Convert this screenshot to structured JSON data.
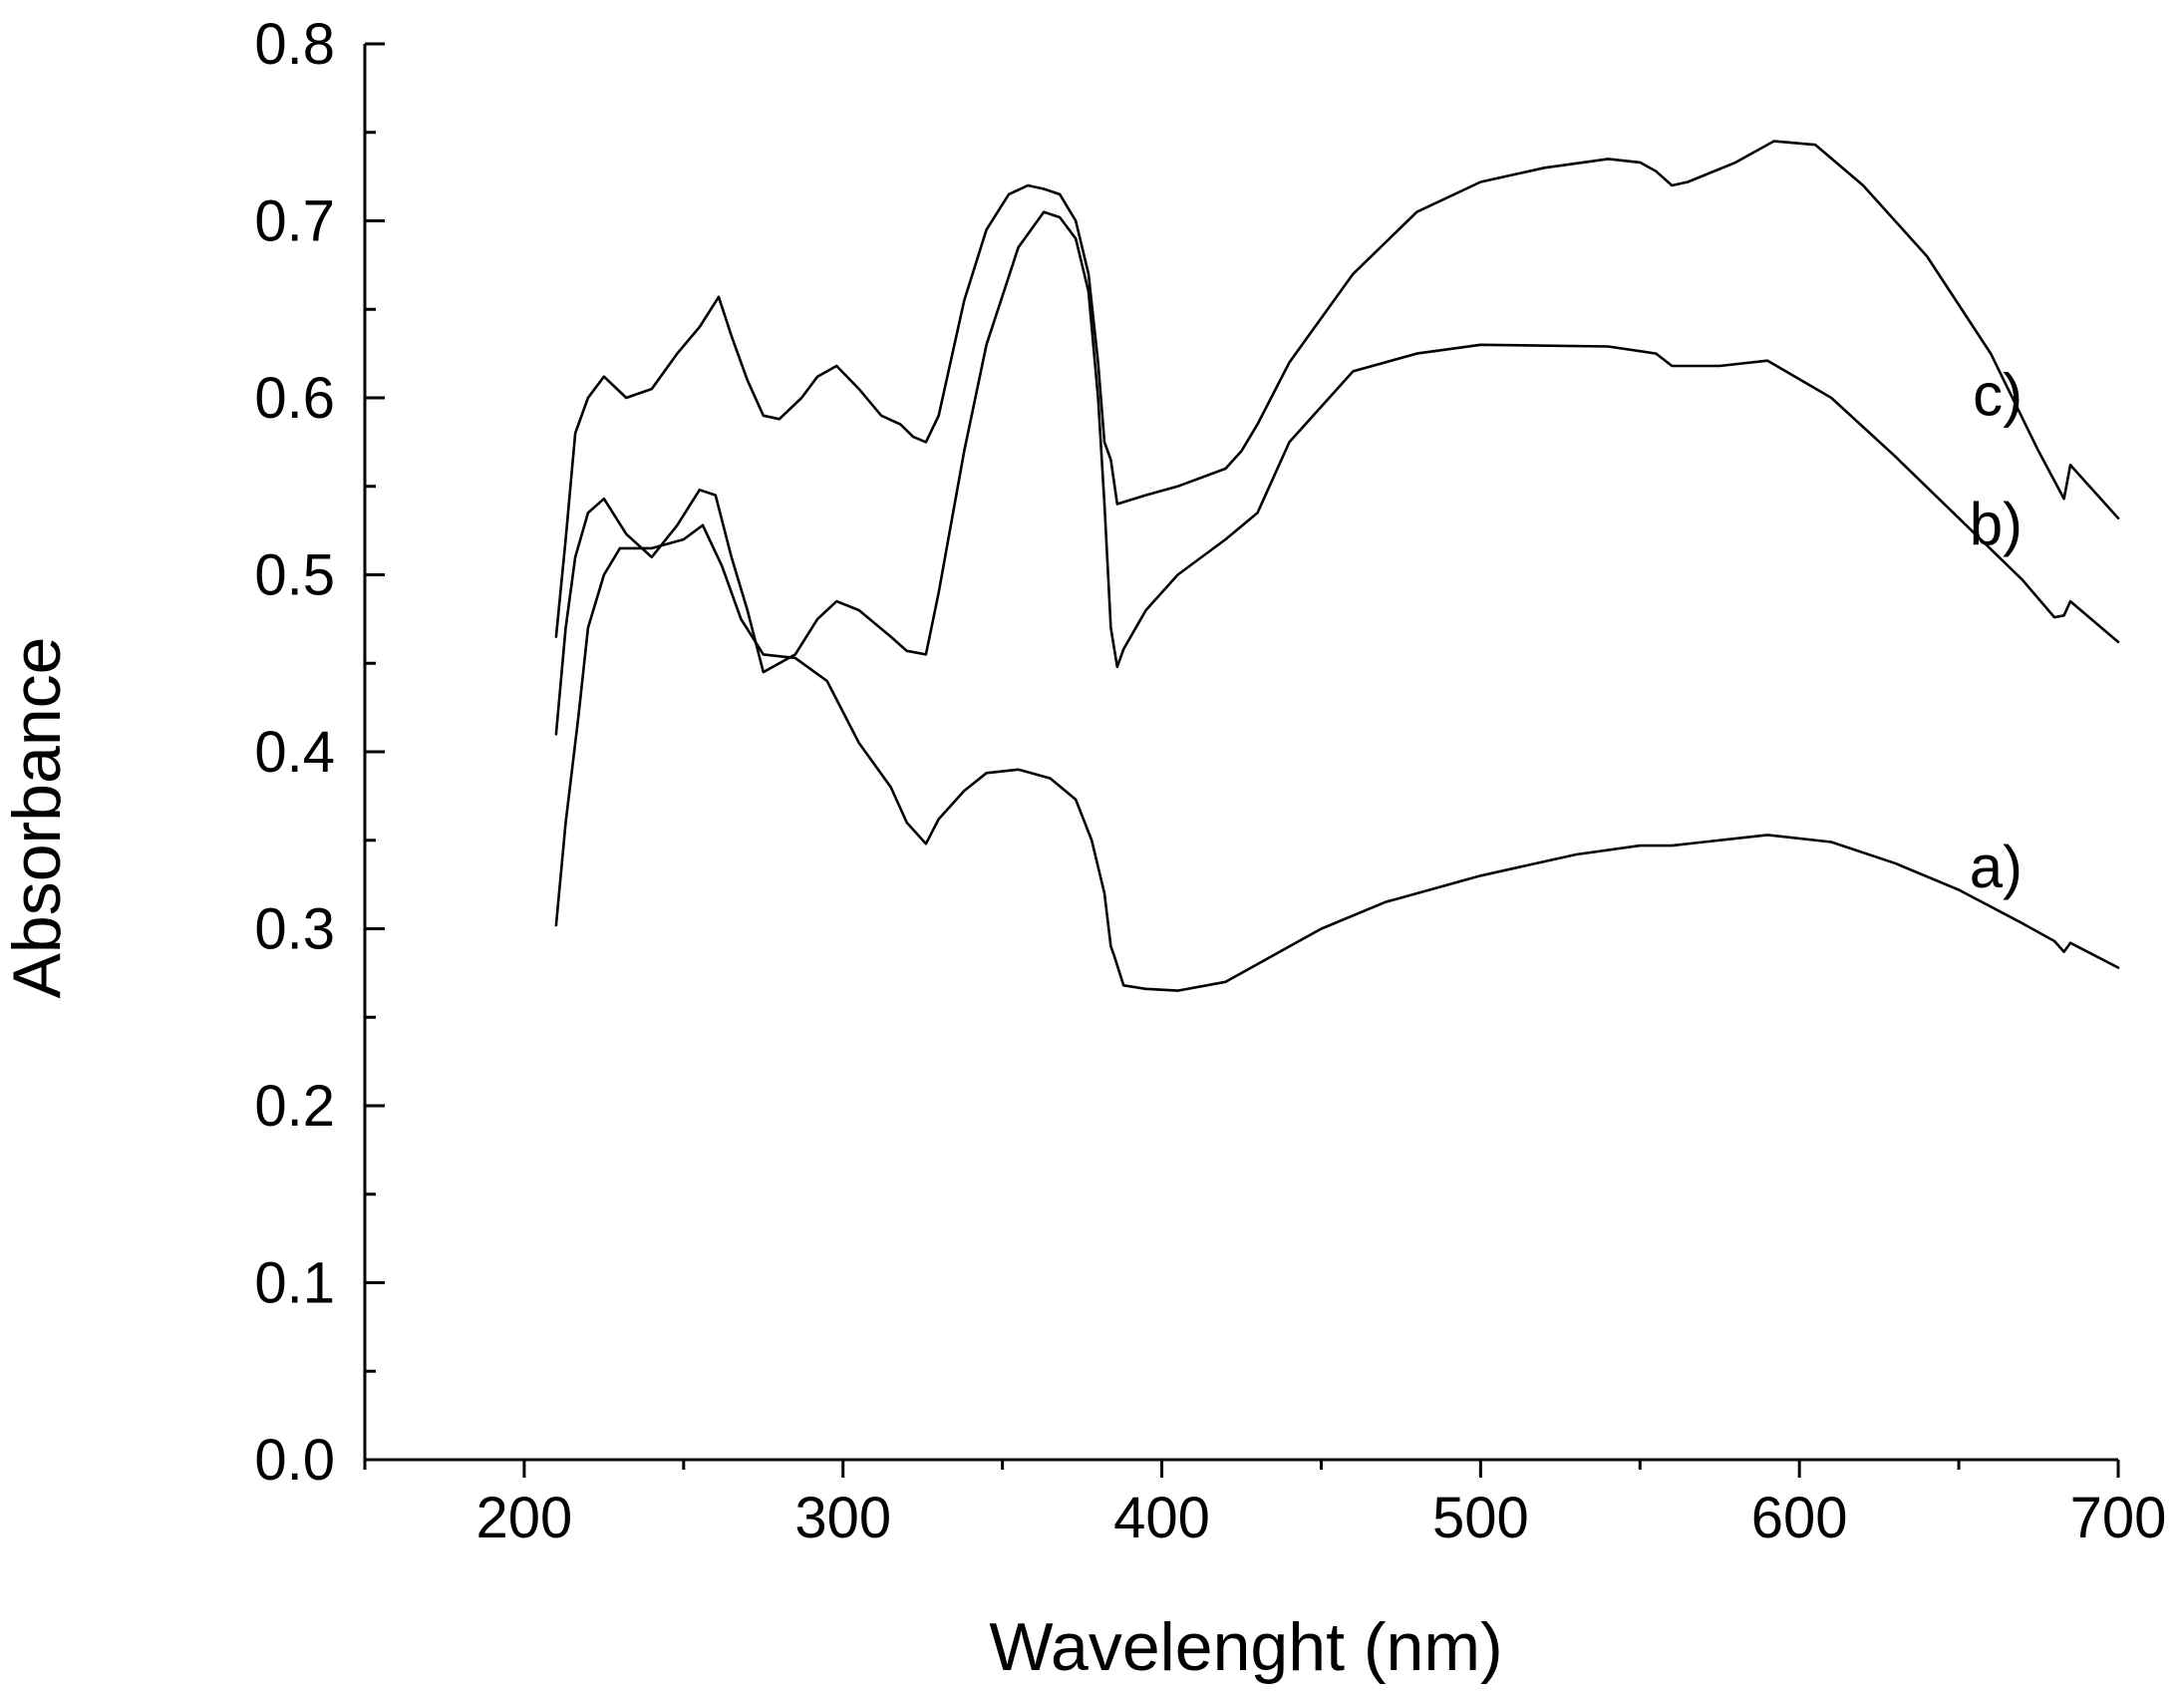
{
  "chart_data": {
    "type": "line",
    "xlabel": "Wavelenght (nm)",
    "ylabel": "Absorbance",
    "xlim": [
      150,
      700
    ],
    "ylim": [
      0.0,
      0.8
    ],
    "x_ticks": [
      "200",
      "300",
      "400",
      "500",
      "600",
      "700"
    ],
    "y_ticks": [
      "0.0",
      "0.1",
      "0.2",
      "0.3",
      "0.4",
      "0.5",
      "0.6",
      "0.7",
      "0.8"
    ],
    "grid": false,
    "legend": "none",
    "series": [
      {
        "name": "a)",
        "x": [
          210,
          213,
          217,
          220,
          225,
          230,
          240,
          250,
          256,
          262,
          268,
          275,
          285,
          295,
          305,
          315,
          320,
          326,
          330,
          338,
          345,
          355,
          365,
          373,
          378,
          382,
          384,
          385,
          388,
          395,
          405,
          420,
          430,
          450,
          470,
          500,
          530,
          550,
          560,
          570,
          590,
          610,
          630,
          650,
          670,
          680,
          683,
          685,
          700
        ],
        "y": [
          0.302,
          0.36,
          0.42,
          0.47,
          0.5,
          0.515,
          0.515,
          0.52,
          0.528,
          0.505,
          0.475,
          0.455,
          0.453,
          0.44,
          0.405,
          0.38,
          0.36,
          0.348,
          0.362,
          0.378,
          0.388,
          0.39,
          0.385,
          0.373,
          0.35,
          0.32,
          0.29,
          0.285,
          0.268,
          0.266,
          0.265,
          0.27,
          0.28,
          0.3,
          0.315,
          0.33,
          0.342,
          0.347,
          0.347,
          0.349,
          0.353,
          0.349,
          0.337,
          0.322,
          0.303,
          0.293,
          0.287,
          0.292,
          0.278
        ]
      },
      {
        "name": "b)",
        "x": [
          210,
          213,
          216,
          220,
          225,
          232,
          240,
          248,
          255,
          260,
          265,
          270,
          275,
          285,
          292,
          298,
          305,
          315,
          320,
          326,
          330,
          338,
          345,
          355,
          363,
          368,
          373,
          377,
          380,
          382,
          384,
          386,
          388,
          395,
          405,
          420,
          430,
          440,
          460,
          480,
          500,
          540,
          555,
          560,
          575,
          590,
          610,
          630,
          650,
          670,
          680,
          683,
          685,
          700
        ],
        "y": [
          0.41,
          0.47,
          0.51,
          0.535,
          0.543,
          0.523,
          0.51,
          0.528,
          0.548,
          0.545,
          0.51,
          0.48,
          0.445,
          0.455,
          0.475,
          0.485,
          0.48,
          0.465,
          0.457,
          0.455,
          0.49,
          0.57,
          0.63,
          0.685,
          0.705,
          0.702,
          0.69,
          0.66,
          0.6,
          0.54,
          0.47,
          0.448,
          0.458,
          0.48,
          0.5,
          0.52,
          0.535,
          0.575,
          0.615,
          0.625,
          0.63,
          0.629,
          0.625,
          0.618,
          0.618,
          0.621,
          0.6,
          0.567,
          0.532,
          0.497,
          0.476,
          0.477,
          0.485,
          0.462
        ]
      },
      {
        "name": "c)",
        "x": [
          210,
          213,
          216,
          220,
          225,
          232,
          240,
          248,
          255,
          261,
          265,
          270,
          275,
          280,
          287,
          292,
          298,
          305,
          312,
          318,
          322,
          326,
          330,
          338,
          345,
          352,
          358,
          363,
          368,
          373,
          377,
          380,
          382,
          384,
          386,
          395,
          405,
          420,
          425,
          430,
          440,
          460,
          480,
          500,
          520,
          540,
          550,
          555,
          560,
          565,
          580,
          592,
          605,
          620,
          640,
          660,
          675,
          683,
          685,
          700
        ],
        "y": [
          0.465,
          0.52,
          0.58,
          0.6,
          0.612,
          0.6,
          0.605,
          0.625,
          0.64,
          0.657,
          0.635,
          0.61,
          0.59,
          0.588,
          0.6,
          0.612,
          0.618,
          0.605,
          0.59,
          0.585,
          0.578,
          0.575,
          0.59,
          0.655,
          0.695,
          0.715,
          0.72,
          0.718,
          0.715,
          0.7,
          0.67,
          0.62,
          0.575,
          0.565,
          0.54,
          0.545,
          0.55,
          0.56,
          0.57,
          0.585,
          0.62,
          0.67,
          0.705,
          0.722,
          0.73,
          0.735,
          0.733,
          0.728,
          0.72,
          0.722,
          0.733,
          0.745,
          0.743,
          0.72,
          0.68,
          0.625,
          0.57,
          0.543,
          0.562,
          0.532
        ]
      }
    ]
  }
}
